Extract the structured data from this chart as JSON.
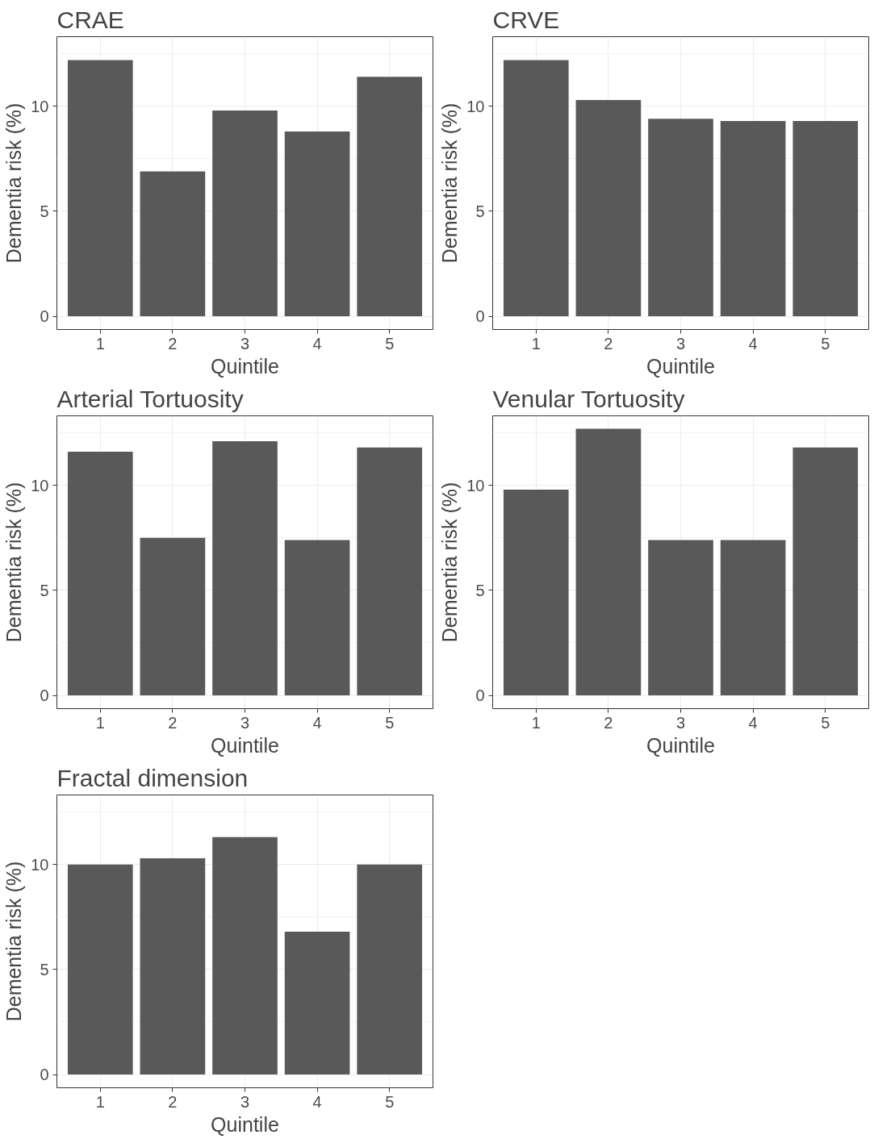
{
  "chart_data": [
    {
      "type": "bar",
      "title": "CRAE",
      "xlabel": "Quintile",
      "ylabel": "Dementia risk (%)",
      "categories": [
        "1",
        "2",
        "3",
        "4",
        "5"
      ],
      "values": [
        12.2,
        6.9,
        9.8,
        8.8,
        11.4
      ],
      "color": "#595959",
      "ylim": [
        -0.63,
        13.31
      ],
      "yticks": [
        0,
        5,
        10
      ],
      "grid": true
    },
    {
      "type": "bar",
      "title": "CRVE",
      "xlabel": "Quintile",
      "ylabel": "Dementia risk (%)",
      "categories": [
        "1",
        "2",
        "3",
        "4",
        "5"
      ],
      "values": [
        12.2,
        10.3,
        9.4,
        9.3,
        9.3
      ],
      "color": "#595959",
      "ylim": [
        -0.63,
        13.31
      ],
      "yticks": [
        0,
        5,
        10
      ],
      "grid": true
    },
    {
      "type": "bar",
      "title": "Arterial Tortuosity",
      "xlabel": "Quintile",
      "ylabel": "Dementia risk (%)",
      "categories": [
        "1",
        "2",
        "3",
        "4",
        "5"
      ],
      "values": [
        11.6,
        7.5,
        12.1,
        7.4,
        11.8
      ],
      "color": "#595959",
      "ylim": [
        -0.63,
        13.31
      ],
      "yticks": [
        0,
        5,
        10
      ],
      "grid": true
    },
    {
      "type": "bar",
      "title": "Venular Tortuosity",
      "xlabel": "Quintile",
      "ylabel": "Dementia risk (%)",
      "categories": [
        "1",
        "2",
        "3",
        "4",
        "5"
      ],
      "values": [
        9.8,
        12.7,
        7.4,
        7.4,
        11.8
      ],
      "color": "#595959",
      "ylim": [
        -0.63,
        13.31
      ],
      "yticks": [
        0,
        5,
        10
      ],
      "grid": true
    },
    {
      "type": "bar",
      "title": "Fractal dimension",
      "xlabel": "Quintile",
      "ylabel": "Dementia risk (%)",
      "categories": [
        "1",
        "2",
        "3",
        "4",
        "5"
      ],
      "values": [
        10.0,
        10.3,
        11.3,
        6.8,
        10.0
      ],
      "color": "#595959",
      "ylim": [
        -0.63,
        13.31
      ],
      "yticks": [
        0,
        5,
        10
      ],
      "grid": true
    }
  ]
}
